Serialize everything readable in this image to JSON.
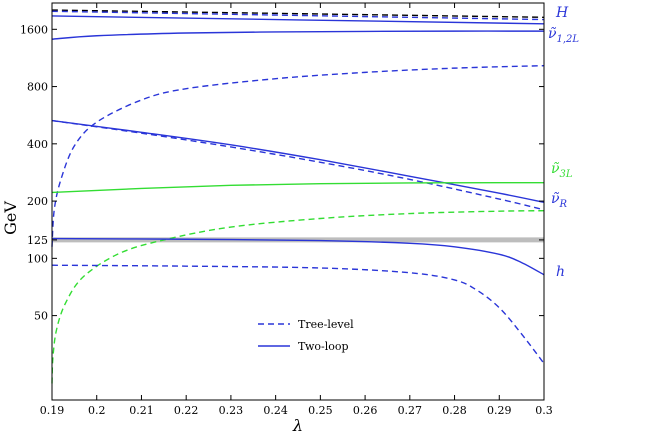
{
  "chart_data": {
    "type": "line",
    "xlabel": "λ",
    "ylabel": "GeV",
    "xlim": [
      0.19,
      0.3
    ],
    "ylim": [
      18,
      2200
    ],
    "yscale": "log",
    "x_ticks": [
      0.19,
      0.2,
      0.21,
      0.22,
      0.23,
      0.24,
      0.25,
      0.26,
      0.27,
      0.28,
      0.29,
      0.3
    ],
    "x_tick_labels": [
      "0.19",
      "0.2",
      "0.21",
      "0.22",
      "0.23",
      "0.24",
      "0.25",
      "0.26",
      "0.27",
      "0.28",
      "0.29",
      "0.3"
    ],
    "y_ticks": [
      50,
      100,
      125,
      200,
      400,
      800,
      1600
    ],
    "y_tick_labels": [
      "50",
      "100",
      "125",
      "200",
      "400",
      "800",
      "1600"
    ],
    "reference_line": {
      "y": 125,
      "color": "#bdbdbd"
    },
    "colors": {
      "blue": "#2a35d8",
      "green": "#33dd33",
      "black": "#000000"
    },
    "legend": {
      "position": "bottom-center",
      "entries": [
        {
          "label": "Tree-level",
          "dash": true
        },
        {
          "label": "Two-loop",
          "dash": false
        }
      ]
    },
    "labels": [
      {
        "key": "H",
        "text": "H",
        "color": "#2a35d8"
      },
      {
        "key": "nu12L",
        "text": "ν̃",
        "sub": "1,2L",
        "color": "#2a35d8"
      },
      {
        "key": "nu3L",
        "text": "ν̃",
        "sub": "3L",
        "color": "#33dd33"
      },
      {
        "key": "nuR",
        "text": "ν̃",
        "sub": "R",
        "color": "#2a35d8"
      },
      {
        "key": "h",
        "text": "h",
        "color": "#2a35d8"
      }
    ],
    "series": [
      {
        "key": "H_tree",
        "color": "#000000",
        "dash": true,
        "x": [
          0.19,
          0.3
        ],
        "y": [
          2020,
          1850
        ]
      },
      {
        "key": "H_tree_blue",
        "color": "#2a35d8",
        "dash": true,
        "x": [
          0.19,
          0.3
        ],
        "y": [
          1990,
          1800
        ]
      },
      {
        "key": "H_loop",
        "color": "#2a35d8",
        "dash": false,
        "x": [
          0.19,
          0.3
        ],
        "y": [
          1880,
          1710
        ]
      },
      {
        "key": "nu12L_loop",
        "color": "#2a35d8",
        "dash": false,
        "x": [
          0.19,
          0.2,
          0.22,
          0.24,
          0.26,
          0.28,
          0.3
        ],
        "y": [
          1420,
          1480,
          1530,
          1550,
          1560,
          1565,
          1565
        ]
      },
      {
        "key": "nu12L_tree",
        "color": "#2a35d8",
        "dash": true,
        "x": [
          0.19,
          0.1905,
          0.192,
          0.195,
          0.2,
          0.21,
          0.22,
          0.24,
          0.26,
          0.28,
          0.3
        ],
        "y": [
          115,
          180,
          260,
          390,
          520,
          680,
          780,
          880,
          950,
          1000,
          1030
        ]
      },
      {
        "key": "nuR_loop",
        "color": "#2a35d8",
        "dash": false,
        "x": [
          0.19,
          0.21,
          0.23,
          0.25,
          0.27,
          0.29,
          0.3
        ],
        "y": [
          530,
          460,
          395,
          330,
          270,
          220,
          197
        ]
      },
      {
        "key": "nuR_tree",
        "color": "#2a35d8",
        "dash": true,
        "x": [
          0.19,
          0.21,
          0.23,
          0.25,
          0.27,
          0.29,
          0.3
        ],
        "y": [
          530,
          455,
          385,
          320,
          260,
          205,
          180
        ]
      },
      {
        "key": "nu3L_loop",
        "color": "#33dd33",
        "dash": false,
        "x": [
          0.19,
          0.21,
          0.23,
          0.25,
          0.27,
          0.29,
          0.3
        ],
        "y": [
          222,
          233,
          242,
          247,
          249,
          250,
          250
        ]
      },
      {
        "key": "nu3L_tree",
        "color": "#33dd33",
        "dash": true,
        "x": [
          0.19,
          0.1902,
          0.191,
          0.193,
          0.197,
          0.205,
          0.215,
          0.23,
          0.25,
          0.27,
          0.29,
          0.3
        ],
        "y": [
          22,
          30,
          42,
          58,
          80,
          106,
          125,
          146,
          162,
          172,
          177,
          178
        ]
      },
      {
        "key": "h_loop",
        "color": "#2a35d8",
        "dash": false,
        "x": [
          0.19,
          0.22,
          0.25,
          0.27,
          0.28,
          0.29,
          0.295,
          0.3
        ],
        "y": [
          127,
          126,
          124,
          120,
          115,
          105,
          95,
          82
        ]
      },
      {
        "key": "h_tree",
        "color": "#2a35d8",
        "dash": true,
        "x": [
          0.19,
          0.22,
          0.25,
          0.27,
          0.28,
          0.285,
          0.29,
          0.295,
          0.3
        ],
        "y": [
          92,
          91,
          89,
          84,
          77,
          68,
          55,
          40,
          28
        ]
      }
    ]
  }
}
